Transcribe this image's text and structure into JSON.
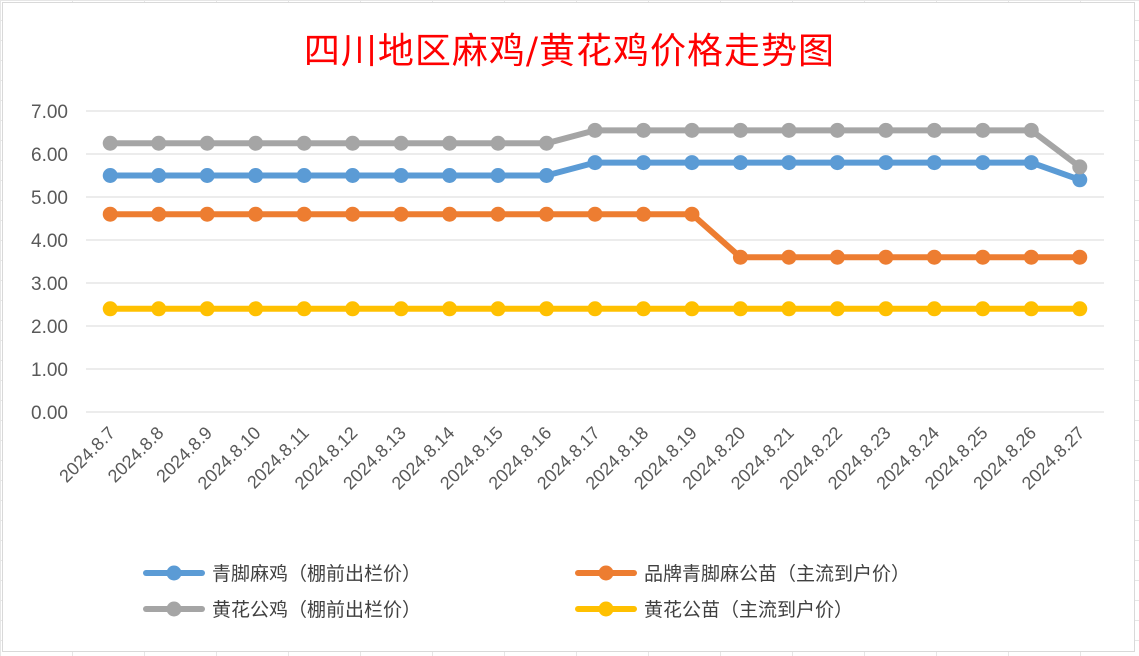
{
  "chart_data": {
    "type": "line",
    "title": "四川地区麻鸡/黄花鸡价格走势图",
    "xlabel": "",
    "ylabel": "",
    "ylim": [
      0,
      7
    ],
    "yticks": [
      "0.00",
      "1.00",
      "2.00",
      "3.00",
      "4.00",
      "5.00",
      "6.00",
      "7.00"
    ],
    "grid": true,
    "legend_position": "bottom",
    "categories": [
      "2024.8.7",
      "2024.8.8",
      "2024.8.9",
      "2024.8.10",
      "2024.8.11",
      "2024.8.12",
      "2024.8.13",
      "2024.8.14",
      "2024.8.15",
      "2024.8.16",
      "2024.8.17",
      "2024.8.18",
      "2024.8.19",
      "2024.8.20",
      "2024.8.21",
      "2024.8.22",
      "2024.8.23",
      "2024.8.24",
      "2024.8.25",
      "2024.8.26",
      "2024.8.27"
    ],
    "series": [
      {
        "name": "青脚麻鸡（棚前出栏价）",
        "color": "#5b9bd5",
        "values": [
          5.5,
          5.5,
          5.5,
          5.5,
          5.5,
          5.5,
          5.5,
          5.5,
          5.5,
          5.5,
          5.8,
          5.8,
          5.8,
          5.8,
          5.8,
          5.8,
          5.8,
          5.8,
          5.8,
          5.8,
          5.4
        ]
      },
      {
        "name": "品牌青脚麻公苗（主流到户价）",
        "color": "#ed7d31",
        "values": [
          4.6,
          4.6,
          4.6,
          4.6,
          4.6,
          4.6,
          4.6,
          4.6,
          4.6,
          4.6,
          4.6,
          4.6,
          4.6,
          3.6,
          3.6,
          3.6,
          3.6,
          3.6,
          3.6,
          3.6,
          3.6
        ]
      },
      {
        "name": "黄花公鸡（棚前出栏价）",
        "color": "#a5a5a5",
        "values": [
          6.25,
          6.25,
          6.25,
          6.25,
          6.25,
          6.25,
          6.25,
          6.25,
          6.25,
          6.25,
          6.55,
          6.55,
          6.55,
          6.55,
          6.55,
          6.55,
          6.55,
          6.55,
          6.55,
          6.55,
          5.7
        ]
      },
      {
        "name": "黄花公苗（主流到户价）",
        "color": "#ffc000",
        "values": [
          2.4,
          2.4,
          2.4,
          2.4,
          2.4,
          2.4,
          2.4,
          2.4,
          2.4,
          2.4,
          2.4,
          2.4,
          2.4,
          2.4,
          2.4,
          2.4,
          2.4,
          2.4,
          2.4,
          2.4,
          2.4
        ]
      }
    ]
  }
}
